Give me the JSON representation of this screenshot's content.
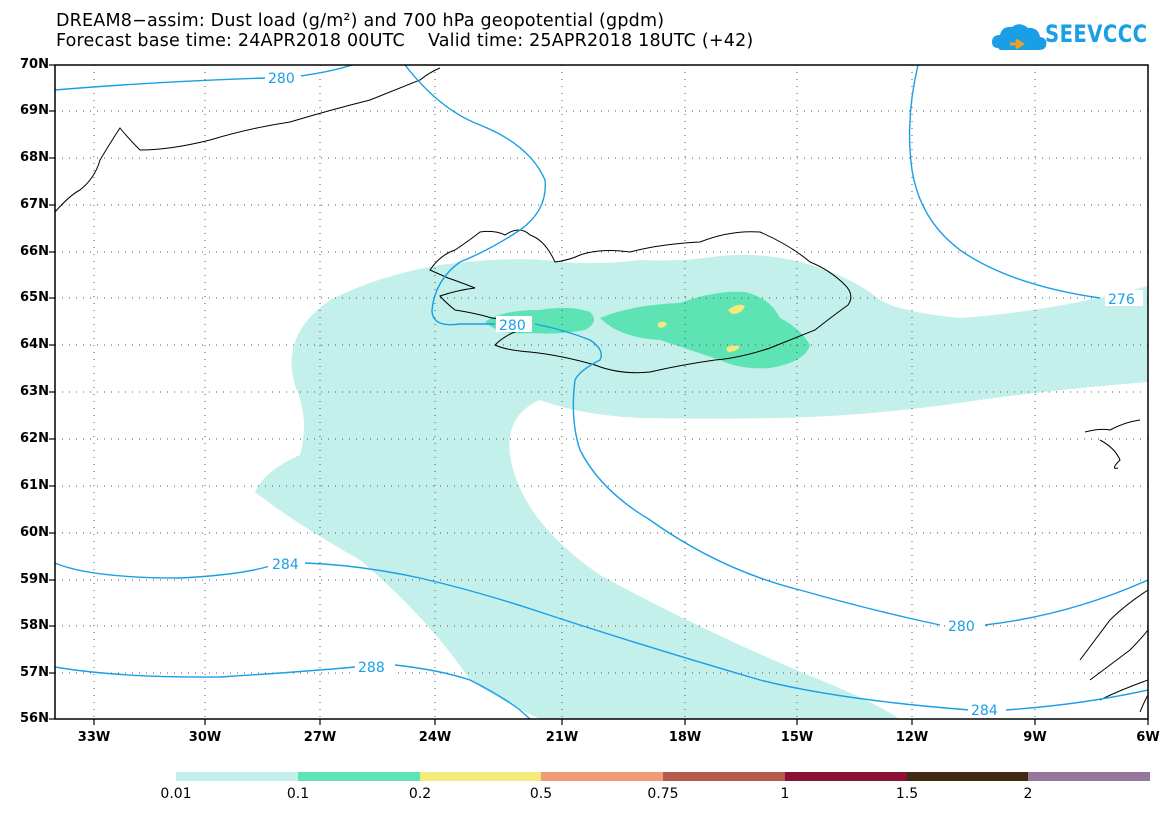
{
  "title": {
    "line1": "DREAM8−assim: Dust load (g/m²) and 700 hPa geopotential (gpdm)",
    "line2": "Forecast base time: 24APR2018 00UTC    Valid time: 25APR2018 18UTC (+42)"
  },
  "logo": {
    "text": "SEEVCCC",
    "icon": "cloud-icon",
    "color": "#1a9ee6"
  },
  "map": {
    "lat_labels": [
      "70N",
      "69N",
      "68N",
      "67N",
      "66N",
      "65N",
      "64N",
      "63N",
      "62N",
      "61N",
      "60N",
      "59N",
      "58N",
      "57N",
      "56N"
    ],
    "lon_labels": [
      "33W",
      "30W",
      "27W",
      "24W",
      "21W",
      "18W",
      "15W",
      "12W",
      "9W",
      "6W"
    ],
    "contour_labels": [
      "280",
      "276",
      "280",
      "284",
      "288",
      "280",
      "284"
    ],
    "contour_color": "#1a9ee6",
    "grid": "dotted"
  },
  "colorbar": {
    "colors": [
      "#c3f0ea",
      "#5ee3b4",
      "#f4e97c",
      "#f09b74",
      "#b65a4b",
      "#8a1133",
      "#3f2a14",
      "#97769e"
    ],
    "labels": [
      "0.01",
      "0.1",
      "0.2",
      "0.5",
      "0.75",
      "1",
      "1.5",
      "2"
    ]
  }
}
